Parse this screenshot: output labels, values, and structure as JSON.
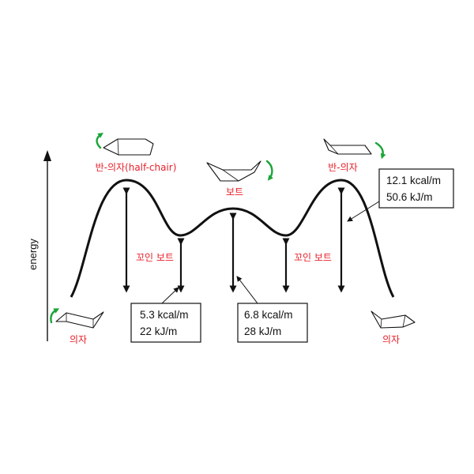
{
  "axis": {
    "label": "energy"
  },
  "conformers": {
    "chair_left": "의자",
    "chair_right": "의자",
    "half_chair_left": "반-의자(half-chair)",
    "half_chair_right": "반-의자",
    "boat": "보트",
    "twist_boat_left": "꼬인 보트",
    "twist_boat_right": "꼬인 보트"
  },
  "energies": {
    "twist_boat": {
      "kcal": "5.3 kcal/m",
      "kj": "22 kJ/m"
    },
    "boat": {
      "kcal": "6.8 kcal/m",
      "kj": "28 kJ/m"
    },
    "half_chair": {
      "kcal": "12.1 kcal/m",
      "kj": "50.6 kJ/m"
    }
  },
  "colors": {
    "label_red": "#e8202a",
    "rotation_arrow_green": "#1aa538"
  },
  "icons": [
    "rotation-arrow-icon",
    "cyclohexane-chair-icon",
    "cyclohexane-half-chair-icon",
    "cyclohexane-boat-icon"
  ]
}
